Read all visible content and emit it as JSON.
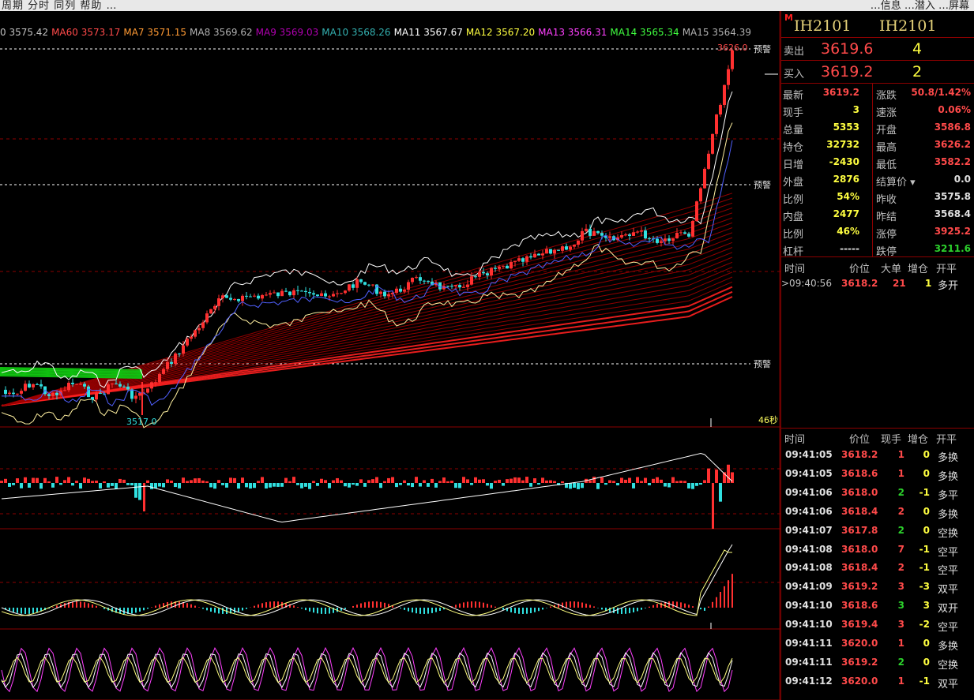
{
  "topbar": {
    "left": "周期 分时 同列 帮助 …",
    "right": "…信息 …潜入 …屏幕"
  },
  "ma_line": [
    {
      "text": "0 3575.42",
      "color": "#c0c0c0"
    },
    {
      "text": "MA60 3573.17",
      "color": "#ff4a4a"
    },
    {
      "text": "MA7 3571.15",
      "color": "#ff9a33"
    },
    {
      "text": "MA8 3569.62",
      "color": "#b0b0b0"
    },
    {
      "text": "MA9 3569.03",
      "color": "#b000b0"
    },
    {
      "text": "MA10 3568.26",
      "color": "#33b0b0"
    },
    {
      "text": "MA11 3567.67",
      "color": "#ffffff"
    },
    {
      "text": "MA12 3567.20",
      "color": "#ffff40"
    },
    {
      "text": "MA13 3566.31",
      "color": "#ff40ff"
    },
    {
      "text": "MA14 3565.34",
      "color": "#40ff40"
    },
    {
      "text": "MA15 3564.39",
      "color": "#b0b0b0"
    }
  ],
  "main_chart": {
    "high_label": "3626.0",
    "low_label": "3517.0",
    "warn_label": "预警",
    "timer_label": "46秒"
  },
  "quote": {
    "badge": "M",
    "symbol": "IH2101",
    "symbol2": "IH2101",
    "ask_label": "卖出",
    "ask_price": "3619.6",
    "ask_vol": "4",
    "bid_label": "买入",
    "bid_price": "3619.2",
    "bid_vol": "2",
    "stats": [
      {
        "l1": "最新",
        "v1": "3619.2",
        "c1": "red",
        "l2": "涨跌",
        "v2": "50.8/1.42%",
        "c2": "red"
      },
      {
        "l1": "现手",
        "v1": "3",
        "c1": "yel",
        "l2": "速涨",
        "v2": "0.06%",
        "c2": "red"
      },
      {
        "l1": "总量",
        "v1": "5353",
        "c1": "yel",
        "l2": "开盘",
        "v2": "3586.8",
        "c2": "red"
      },
      {
        "l1": "持仓",
        "v1": "32732",
        "c1": "yel",
        "l2": "最高",
        "v2": "3626.2",
        "c2": "red"
      },
      {
        "l1": "日增",
        "v1": "-2430",
        "c1": "yel",
        "l2": "最低",
        "v2": "3582.2",
        "c2": "red"
      },
      {
        "l1": "外盘",
        "v1": "2876",
        "c1": "yel",
        "l2": "结算价 ▾",
        "v2": "0.0",
        "c2": "wht"
      },
      {
        "l1": "比例",
        "v1": "54%",
        "c1": "yel",
        "l2": "昨收",
        "v2": "3575.8",
        "c2": "wht"
      },
      {
        "l1": "内盘",
        "v1": "2477",
        "c1": "yel",
        "l2": "昨结",
        "v2": "3568.4",
        "c2": "wht"
      },
      {
        "l1": "比例",
        "v1": "46%",
        "c1": "yel",
        "l2": "涨停",
        "v2": "3925.2",
        "c2": "red"
      },
      {
        "l1": "杠杆",
        "v1": "-----",
        "c1": "wht",
        "l2": "跌停",
        "v2": "3211.6",
        "c2": "grn"
      }
    ],
    "big_header": [
      "时间",
      "价位",
      "大单",
      "增仓",
      "开平"
    ],
    "big_row": {
      "time": ">09:40:56",
      "price": "3618.2",
      "vol": "21",
      "oi": "1",
      "type": "多开"
    },
    "tick_header": [
      "时间",
      "价位",
      "现手",
      "增仓",
      "开平"
    ],
    "ticks": [
      {
        "t": "09:41:05",
        "p": "3618.2",
        "v": "1",
        "o": "0",
        "k": "多换",
        "pc": "red",
        "vc": "red"
      },
      {
        "t": "09:41:05",
        "p": "3618.6",
        "v": "1",
        "o": "0",
        "k": "多换",
        "pc": "red",
        "vc": "red"
      },
      {
        "t": "09:41:06",
        "p": "3618.0",
        "v": "2",
        "o": "-1",
        "k": "多平",
        "pc": "red",
        "vc": "grn"
      },
      {
        "t": "09:41:06",
        "p": "3618.4",
        "v": "2",
        "o": "0",
        "k": "多换",
        "pc": "red",
        "vc": "red"
      },
      {
        "t": "09:41:07",
        "p": "3617.8",
        "v": "2",
        "o": "0",
        "k": "空换",
        "pc": "red",
        "vc": "grn"
      },
      {
        "t": "09:41:08",
        "p": "3618.0",
        "v": "7",
        "o": "-1",
        "k": "空平",
        "pc": "red",
        "vc": "red"
      },
      {
        "t": "09:41:08",
        "p": "3618.4",
        "v": "2",
        "o": "-1",
        "k": "空平",
        "pc": "red",
        "vc": "red"
      },
      {
        "t": "09:41:09",
        "p": "3619.2",
        "v": "3",
        "o": "-3",
        "k": "双平",
        "pc": "red",
        "vc": "red"
      },
      {
        "t": "09:41:10",
        "p": "3618.6",
        "v": "3",
        "o": "3",
        "k": "双开",
        "pc": "red",
        "vc": "grn"
      },
      {
        "t": "09:41:10",
        "p": "3619.4",
        "v": "3",
        "o": "-2",
        "k": "空平",
        "pc": "red",
        "vc": "red"
      },
      {
        "t": "09:41:11",
        "p": "3620.0",
        "v": "1",
        "o": "0",
        "k": "多换",
        "pc": "red",
        "vc": "red"
      },
      {
        "t": "09:41:11",
        "p": "3619.2",
        "v": "2",
        "o": "0",
        "k": "空换",
        "pc": "red",
        "vc": "grn"
      },
      {
        "t": "09:41:12",
        "p": "3620.0",
        "v": "1",
        "o": "-1",
        "k": "双平",
        "pc": "red",
        "vc": "red"
      }
    ]
  },
  "colors": {
    "up": "#ff3030",
    "down": "#30e0e0",
    "grid": "#8b0000",
    "ma_fan": "#c00000",
    "band": "#ffffff",
    "band_low": "#fff0a0"
  }
}
